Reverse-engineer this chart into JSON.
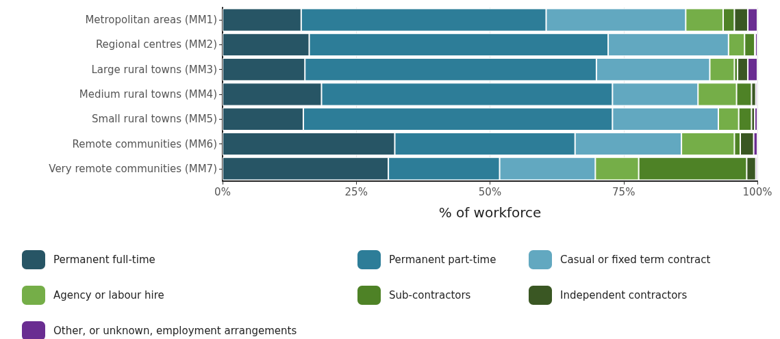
{
  "chart_data": {
    "type": "bar",
    "orientation": "horizontal",
    "stacked": true,
    "xlabel": "% of workforce",
    "categories": [
      "Metropolitan areas (MM1)",
      "Regional centres (MM2)",
      "Large rural towns (MM3)",
      "Medium rural towns (MM4)",
      "Small rural towns (MM5)",
      "Remote communities (MM6)",
      "Very remote communities (MM7)"
    ],
    "series": [
      {
        "name": "Permanent full-time",
        "color": "#275565",
        "values": [
          14.7,
          16.2,
          15.4,
          18.5,
          15.1,
          32.2,
          31.0
        ]
      },
      {
        "name": "Permanent part-time",
        "color": "#2d7d98",
        "values": [
          45.8,
          55.9,
          54.5,
          54.4,
          57.8,
          33.7,
          20.8
        ]
      },
      {
        "name": "Casual or fixed term contract",
        "color": "#62a8c0",
        "values": [
          26.1,
          22.5,
          21.2,
          16.0,
          19.8,
          19.9,
          17.9
        ]
      },
      {
        "name": "Agency or labour hire",
        "color": "#75ae48",
        "values": [
          7.0,
          3.0,
          4.6,
          7.2,
          3.8,
          9.9,
          8.1
        ]
      },
      {
        "name": "Sub-contractors",
        "color": "#4e8226",
        "values": [
          2.1,
          1.9,
          0.6,
          2.8,
          2.4,
          1.1,
          20.2
        ]
      },
      {
        "name": "Independent contractors",
        "color": "#3a5723",
        "values": [
          2.5,
          0.1,
          1.9,
          0.8,
          0.6,
          2.5,
          1.7
        ]
      },
      {
        "name": "Other, or unknown, employment arrangements",
        "color": "#6a2d91",
        "values": [
          1.8,
          0.4,
          1.8,
          0.3,
          0.5,
          0.7,
          0.3
        ]
      }
    ],
    "xlim": [
      0,
      100
    ],
    "xticks": [
      {
        "value": 0,
        "label": "0%"
      },
      {
        "value": 25,
        "label": "25%"
      },
      {
        "value": 50,
        "label": "50%"
      },
      {
        "value": 75,
        "label": "75%"
      },
      {
        "value": 100,
        "label": "100%"
      }
    ],
    "grid": "x",
    "legend": "bottom"
  }
}
